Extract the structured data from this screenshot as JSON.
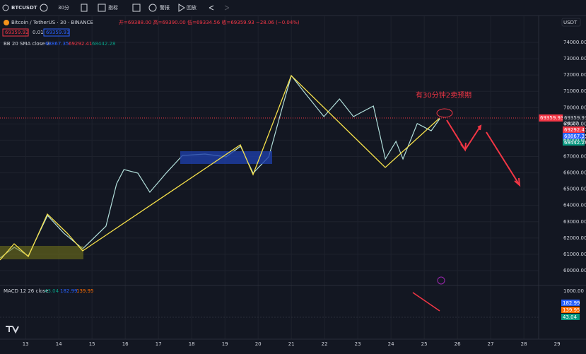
{
  "toolbar": {
    "symbol": "BTCUSDT",
    "interval": "30分",
    "indicators": "指标",
    "alert": "警报",
    "replay": "回放"
  },
  "legend": {
    "title": "Bitcoin / TetherUS · 30 · BINANCE",
    "ohlc": "开=69388.00  高=69390.00  低=69334.56  收=69359.93  −28.06 (−0.04%)",
    "sell": "69359.92",
    "spread": "0.01",
    "buy": "69359.93",
    "bb_name": "BB 20 SMA close 2",
    "bb_basis": "68867.35",
    "bb_upper": "69292.41",
    "bb_lower": "68442.28",
    "macd_name": "MACD 12 26 close",
    "macd_hist": "43.04",
    "macd": "182.99",
    "signal": "139.95"
  },
  "currency": "USDT",
  "price_tags": {
    "last": "69359.93",
    "countdown": "24:27",
    "upper": "69292.41",
    "basis": "68867.35",
    "lower": "68442.28"
  },
  "macd_pane": {
    "axis_label": "1000.00",
    "tags": [
      "182.99",
      "139.95",
      "43.04"
    ]
  },
  "annotation": "有30分钟2卖预期",
  "chart_data": {
    "type": "line",
    "x": [
      12.23,
      12.66,
      13.08,
      13.66,
      14.15,
      14.72,
      15.42,
      15.74,
      15.96,
      16.38,
      16.74,
      17.23,
      17.72,
      18.4,
      19.04,
      19.47,
      19.85,
      20.32,
      20.74,
      21.0,
      21.38,
      21.98,
      22.45,
      22.87,
      23.47,
      23.83,
      24.15,
      24.36,
      24.79,
      25.21,
      25.47
    ],
    "series": [
      {
        "name": "BTCUSDT",
        "color": "#b2dfdb",
        "values": [
          60780,
          61430,
          60910,
          63380,
          62300,
          61340,
          62730,
          65330,
          66200,
          65980,
          64810,
          65980,
          67060,
          67150,
          66980,
          67630,
          65980,
          66980,
          70100,
          71960,
          70970,
          69450,
          70530,
          69450,
          70100,
          66850,
          67930,
          66850,
          69020,
          68580,
          69320
        ]
      }
    ],
    "xlim": [
      12.23,
      29.87
    ],
    "xticks": [
      13,
      14,
      15,
      16,
      17,
      18,
      19,
      20,
      21,
      22,
      23,
      24,
      25,
      26,
      27,
      28,
      29
    ],
    "ylim": [
      60000,
      74000
    ],
    "yticks": [
      {
        "value": 60000,
        "label": "60000.00"
      },
      {
        "value": 61000,
        "label": "61000.00"
      },
      {
        "value": 62000,
        "label": "62000.00"
      },
      {
        "value": 63000,
        "label": "63000.00"
      },
      {
        "value": 64000,
        "label": "64000.00"
      },
      {
        "value": 65000,
        "label": "65000.00"
      },
      {
        "value": 66000,
        "label": "66000.00"
      },
      {
        "value": 67000,
        "label": "67000.00"
      },
      {
        "value": 68000,
        "label": "68000.00"
      },
      {
        "value": 69000,
        "label": "69000.00"
      },
      {
        "value": 70000,
        "label": "70000.00"
      },
      {
        "value": 71000,
        "label": "71000.00"
      },
      {
        "value": 72000,
        "label": "72000.00"
      },
      {
        "value": 73000,
        "label": "73000.00"
      },
      {
        "value": 74000,
        "label": "74000.00"
      }
    ],
    "grid": true
  }
}
